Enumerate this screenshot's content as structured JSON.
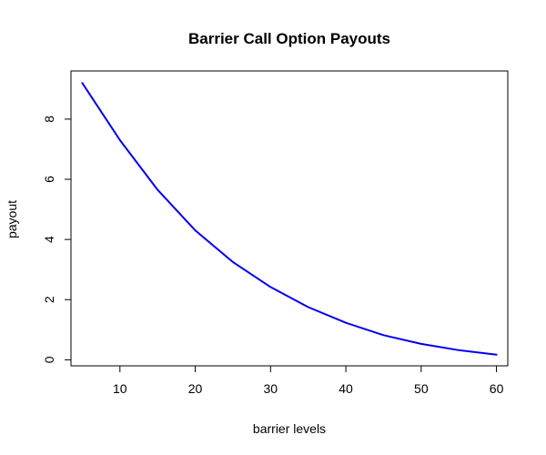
{
  "chart_data": {
    "type": "line",
    "title": "Barrier Call Option Payouts",
    "xlabel": "barrier levels",
    "ylabel": "payout",
    "xlim": [
      3.5,
      61.5
    ],
    "ylim": [
      -0.2,
      9.6
    ],
    "x_ticks": [
      10,
      20,
      30,
      40,
      50,
      60
    ],
    "y_ticks": [
      0,
      2,
      4,
      6,
      8
    ],
    "grid": false,
    "legend": "none",
    "series": [
      {
        "color": "#0000ee",
        "x": [
          5,
          10,
          15,
          20,
          25,
          30,
          35,
          40,
          45,
          50,
          55,
          60
        ],
        "y": [
          9.2,
          7.3,
          5.65,
          4.3,
          3.25,
          2.42,
          1.75,
          1.23,
          0.82,
          0.53,
          0.32,
          0.17
        ]
      }
    ]
  }
}
